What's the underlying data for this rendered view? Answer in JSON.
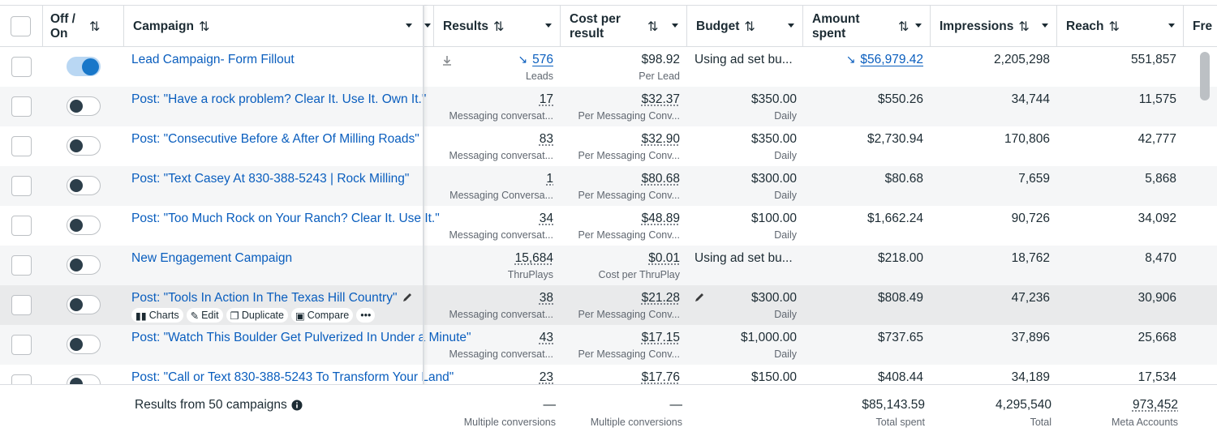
{
  "header": {
    "col_status": "Off / On",
    "col_campaign": "Campaign",
    "col_results": "Results",
    "col_cpr": "Cost per result",
    "col_budget": "Budget",
    "col_amount": "Amount spent",
    "col_impressions": "Impressions",
    "col_reach": "Reach",
    "col_freq": "Fre"
  },
  "rows": [
    {
      "on": true,
      "campaign": "Lead Campaign- Form Fillout",
      "results": "576",
      "results_sub": "Leads",
      "cpr": "$98.92",
      "cpr_sub": "Per Lead",
      "budget": "Using ad set bu...",
      "budget_sub": "",
      "amount": "$56,979.42",
      "impressions": "2,205,298",
      "reach": "551,857"
    },
    {
      "on": false,
      "campaign": "Post: \"Have a rock problem? Clear It. Use It. Own It.\"",
      "results": "17",
      "results_sub": "Messaging conversat...",
      "cpr": "$32.37",
      "cpr_sub": "Per Messaging Conv...",
      "budget": "$350.00",
      "budget_sub": "Daily",
      "amount": "$550.26",
      "impressions": "34,744",
      "reach": "11,575"
    },
    {
      "on": false,
      "campaign": "Post: \"Consecutive Before & After Of Milling Roads\"",
      "results": "83",
      "results_sub": "Messaging conversat...",
      "cpr": "$32.90",
      "cpr_sub": "Per Messaging Conv...",
      "budget": "$350.00",
      "budget_sub": "Daily",
      "amount": "$2,730.94",
      "impressions": "170,806",
      "reach": "42,777"
    },
    {
      "on": false,
      "campaign": "Post: \"Text Casey At 830-388-5243 | Rock Milling\"",
      "results": "1",
      "results_sub": "Messaging Conversa...",
      "cpr": "$80.68",
      "cpr_sub": "Per Messaging Conv...",
      "budget": "$300.00",
      "budget_sub": "Daily",
      "amount": "$80.68",
      "impressions": "7,659",
      "reach": "5,868"
    },
    {
      "on": false,
      "campaign": "Post: \"Too Much Rock on Your Ranch? Clear It. Use It.\"",
      "results": "34",
      "results_sub": "Messaging conversat...",
      "cpr": "$48.89",
      "cpr_sub": "Per Messaging Conv...",
      "budget": "$100.00",
      "budget_sub": "Daily",
      "amount": "$1,662.24",
      "impressions": "90,726",
      "reach": "34,092"
    },
    {
      "on": false,
      "campaign": "New Engagement Campaign",
      "results": "15,684",
      "results_sub": "ThruPlays",
      "cpr": "$0.01",
      "cpr_sub": "Cost per ThruPlay",
      "budget": "Using ad set bu...",
      "budget_sub": "",
      "amount": "$218.00",
      "impressions": "18,762",
      "reach": "8,470"
    },
    {
      "on": false,
      "campaign": "Post: \"Tools In Action In The Texas Hill Country\"",
      "results": "38",
      "results_sub": "Messaging conversat...",
      "cpr": "$21.28",
      "cpr_sub": "Per Messaging Conv...",
      "budget": "$300.00",
      "budget_sub": "Daily",
      "amount": "$808.49",
      "impressions": "47,236",
      "reach": "30,906"
    },
    {
      "on": false,
      "campaign": "Post: \"Watch This Boulder Get Pulverized In Under a Minute\"",
      "results": "43",
      "results_sub": "Messaging conversat...",
      "cpr": "$17.15",
      "cpr_sub": "Per Messaging Conv...",
      "budget": "$1,000.00",
      "budget_sub": "Daily",
      "amount": "$737.65",
      "impressions": "37,896",
      "reach": "25,668"
    },
    {
      "on": false,
      "campaign": "Post: \"Call or Text 830-388-5243 To Transform Your Land\"",
      "results": "23",
      "results_sub": "",
      "cpr": "$17.76",
      "cpr_sub": "",
      "budget": "$150.00",
      "budget_sub": "",
      "amount": "$408.44",
      "impressions": "34,189",
      "reach": "17,534"
    }
  ],
  "row_actions": {
    "charts": "Charts",
    "edit": "Edit",
    "duplicate": "Duplicate",
    "compare": "Compare",
    "more": "•••"
  },
  "footer": {
    "label": "Results from 50 campaigns",
    "results": "—",
    "results_sub": "Multiple conversions",
    "cpr": "—",
    "cpr_sub": "Multiple conversions",
    "amount": "$85,143.59",
    "amount_sub": "Total spent",
    "impressions": "4,295,540",
    "impressions_sub": "Total",
    "reach": "973,452",
    "reach_sub": "Meta Accounts"
  },
  "colors": {
    "link": "#0a5ebe",
    "toggle_on": "#1877c9",
    "border": "#dadde1"
  }
}
